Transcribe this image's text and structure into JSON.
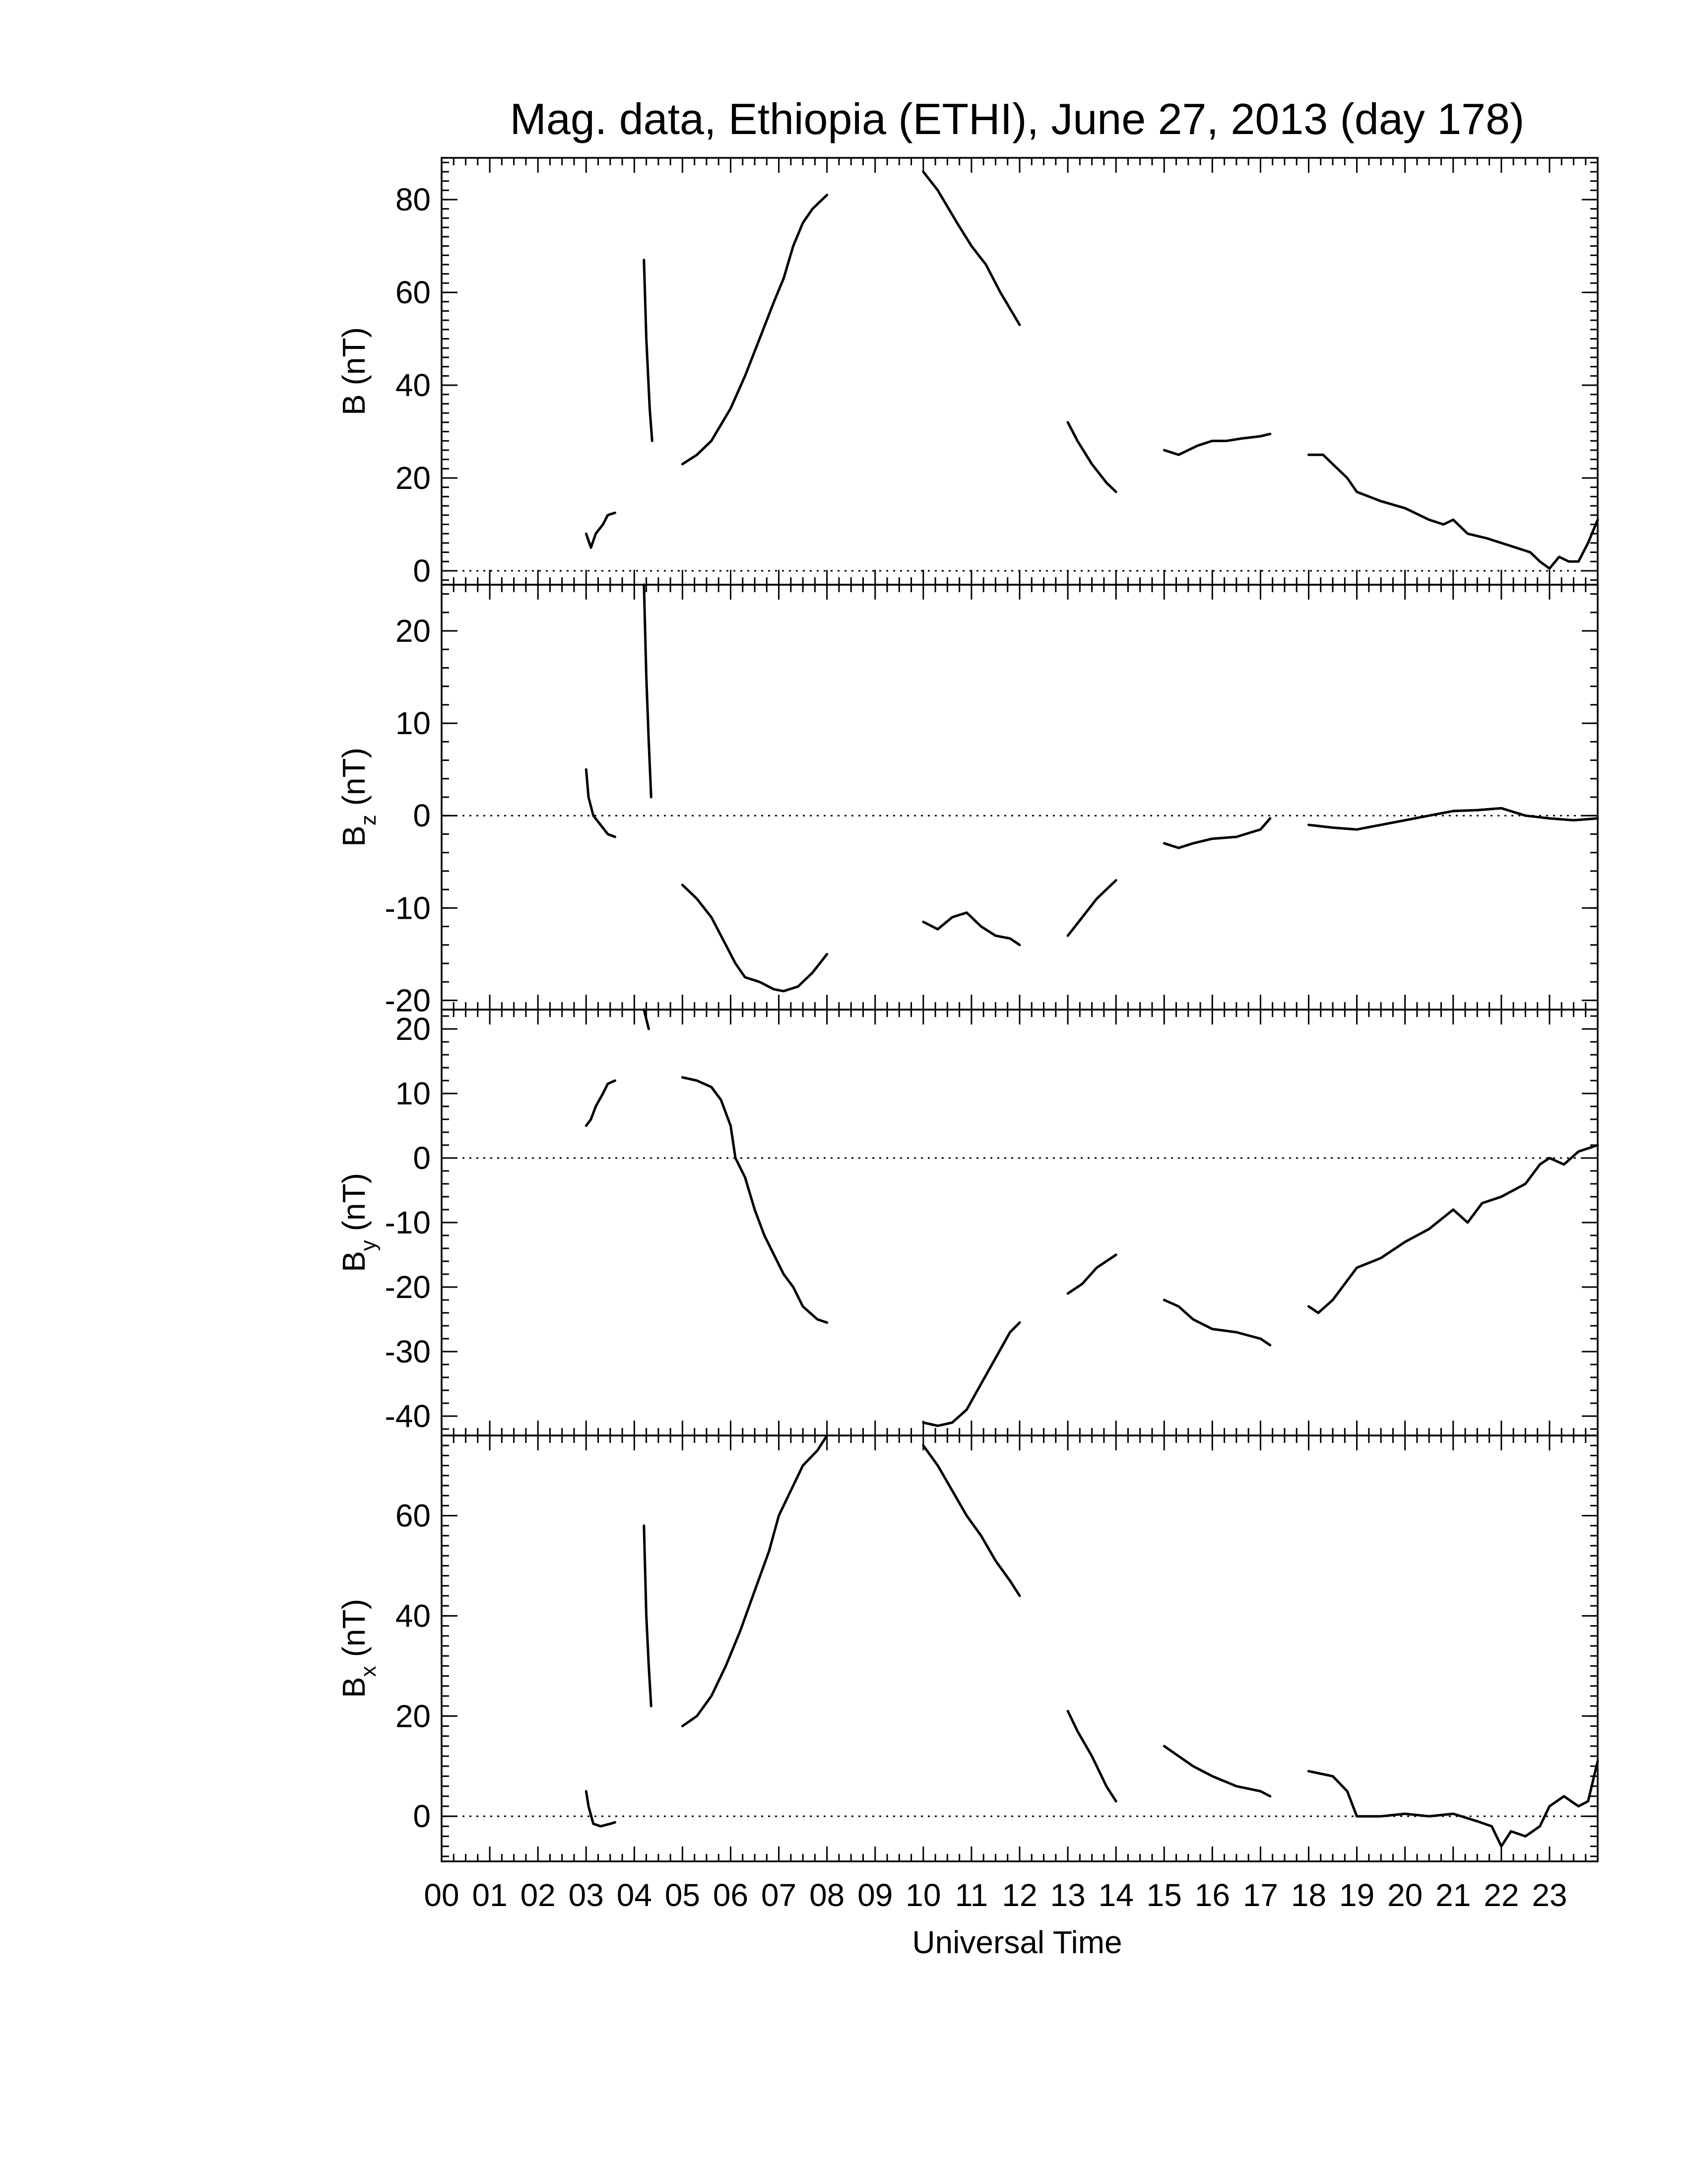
{
  "chart_data": {
    "type": "line",
    "title": "Mag. data, Ethiopia (ETHI), June 27, 2013 (day 178)",
    "xlabel": "Universal Time",
    "xlim": [
      0,
      24
    ],
    "x_tick_labels": [
      "00",
      "01",
      "02",
      "03",
      "04",
      "05",
      "06",
      "07",
      "08",
      "09",
      "10",
      "11",
      "12",
      "13",
      "14",
      "15",
      "16",
      "17",
      "18",
      "19",
      "20",
      "21",
      "22",
      "23"
    ],
    "panels": [
      {
        "id": "B",
        "ylabel_main": "B",
        "ylabel_sub": "",
        "ylabel_unit": " (nT)",
        "ylim": [
          -3,
          89
        ],
        "yticks": [
          0,
          20,
          40,
          60,
          80
        ],
        "zero_line": true,
        "segments": [
          [
            [
              3.0,
              8
            ],
            [
              3.1,
              5
            ],
            [
              3.2,
              8
            ],
            [
              3.35,
              10
            ],
            [
              3.45,
              12
            ],
            [
              3.6,
              12.5
            ]
          ],
          [
            [
              4.2,
              67
            ],
            [
              4.25,
              50
            ],
            [
              4.32,
              35
            ],
            [
              4.37,
              28
            ]
          ],
          [
            [
              5.0,
              23
            ],
            [
              5.3,
              25
            ],
            [
              5.6,
              28
            ],
            [
              6.0,
              35
            ],
            [
              6.3,
              42
            ],
            [
              6.6,
              50
            ],
            [
              6.9,
              58
            ],
            [
              7.1,
              63
            ],
            [
              7.3,
              70
            ],
            [
              7.5,
              75
            ],
            [
              7.7,
              78
            ],
            [
              8.0,
              81
            ]
          ],
          [
            [
              10.0,
              86
            ],
            [
              10.3,
              82
            ],
            [
              10.7,
              75
            ],
            [
              11.0,
              70
            ],
            [
              11.3,
              66
            ],
            [
              11.6,
              60
            ],
            [
              12.0,
              53
            ]
          ],
          [
            [
              13.0,
              32
            ],
            [
              13.2,
              28
            ],
            [
              13.5,
              23
            ],
            [
              13.8,
              19
            ],
            [
              14.0,
              17
            ]
          ],
          [
            [
              15.0,
              26
            ],
            [
              15.3,
              25
            ],
            [
              15.5,
              26
            ],
            [
              15.7,
              27
            ],
            [
              16.0,
              28
            ],
            [
              16.3,
              28
            ],
            [
              16.6,
              28.5
            ],
            [
              17.0,
              29
            ],
            [
              17.2,
              29.5
            ]
          ],
          [
            [
              18.0,
              25
            ],
            [
              18.3,
              25
            ],
            [
              18.5,
              23
            ],
            [
              18.8,
              20
            ],
            [
              19.0,
              17
            ],
            [
              19.5,
              15
            ],
            [
              20.0,
              13.5
            ],
            [
              20.5,
              11
            ],
            [
              20.8,
              10
            ],
            [
              21.0,
              11
            ],
            [
              21.3,
              8
            ],
            [
              21.7,
              7
            ],
            [
              22.0,
              6
            ],
            [
              22.3,
              5
            ],
            [
              22.6,
              4
            ],
            [
              22.8,
              2
            ],
            [
              23.0,
              0.5
            ],
            [
              23.2,
              3
            ],
            [
              23.4,
              2
            ],
            [
              23.6,
              2
            ],
            [
              23.8,
              6
            ],
            [
              24.0,
              11
            ]
          ]
        ]
      },
      {
        "id": "Bz",
        "ylabel_main": "B",
        "ylabel_sub": "z",
        "ylabel_unit": " (nT)",
        "ylim": [
          -21,
          25
        ],
        "yticks": [
          -20,
          -10,
          0,
          10,
          20
        ],
        "zero_line": true,
        "segments": [
          [
            [
              3.0,
              5
            ],
            [
              3.05,
              2
            ],
            [
              3.15,
              0
            ],
            [
              3.3,
              -1
            ],
            [
              3.45,
              -2
            ],
            [
              3.6,
              -2.3
            ]
          ],
          [
            [
              4.2,
              25
            ],
            [
              4.25,
              15
            ],
            [
              4.3,
              8
            ],
            [
              4.35,
              2
            ]
          ],
          [
            [
              5.0,
              -7.5
            ],
            [
              5.3,
              -9
            ],
            [
              5.6,
              -11
            ],
            [
              5.9,
              -14
            ],
            [
              6.1,
              -16
            ],
            [
              6.3,
              -17.5
            ],
            [
              6.6,
              -18
            ],
            [
              6.9,
              -18.8
            ],
            [
              7.1,
              -19
            ],
            [
              7.4,
              -18.5
            ],
            [
              7.7,
              -17
            ],
            [
              8.0,
              -15
            ]
          ],
          [
            [
              10.0,
              -11.5
            ],
            [
              10.3,
              -12.3
            ],
            [
              10.6,
              -11
            ],
            [
              10.9,
              -10.5
            ],
            [
              11.2,
              -12
            ],
            [
              11.5,
              -13
            ],
            [
              11.8,
              -13.3
            ],
            [
              12.0,
              -14
            ]
          ],
          [
            [
              13.0,
              -13
            ],
            [
              13.3,
              -11
            ],
            [
              13.6,
              -9
            ],
            [
              14.0,
              -7
            ]
          ],
          [
            [
              15.0,
              -3
            ],
            [
              15.3,
              -3.5
            ],
            [
              15.6,
              -3
            ],
            [
              16.0,
              -2.5
            ],
            [
              16.5,
              -2.3
            ],
            [
              17.0,
              -1.5
            ],
            [
              17.2,
              -0.3
            ]
          ],
          [
            [
              18.0,
              -1
            ],
            [
              18.5,
              -1.3
            ],
            [
              19.0,
              -1.5
            ],
            [
              19.5,
              -1
            ],
            [
              20.0,
              -0.5
            ],
            [
              20.5,
              0
            ],
            [
              21.0,
              0.5
            ],
            [
              21.5,
              0.6
            ],
            [
              22.0,
              0.8
            ],
            [
              22.5,
              0
            ],
            [
              23.0,
              -0.3
            ],
            [
              23.5,
              -0.5
            ],
            [
              24.0,
              -0.3
            ]
          ]
        ]
      },
      {
        "id": "By",
        "ylabel_main": "B",
        "ylabel_sub": "y",
        "ylabel_unit": " (nT)",
        "ylim": [
          -43,
          23
        ],
        "yticks": [
          -40,
          -30,
          -20,
          -10,
          0,
          10,
          20
        ],
        "zero_line": true,
        "segments": [
          [
            [
              3.0,
              5
            ],
            [
              3.1,
              6
            ],
            [
              3.2,
              8
            ],
            [
              3.35,
              10
            ],
            [
              3.45,
              11.5
            ],
            [
              3.6,
              12
            ]
          ],
          [
            [
              4.2,
              23
            ],
            [
              4.3,
              20
            ]
          ],
          [
            [
              5.0,
              12.5
            ],
            [
              5.3,
              12
            ],
            [
              5.6,
              11
            ],
            [
              5.8,
              9
            ],
            [
              6.0,
              5
            ],
            [
              6.1,
              0
            ],
            [
              6.3,
              -3
            ],
            [
              6.5,
              -8
            ],
            [
              6.7,
              -12
            ],
            [
              6.9,
              -15
            ],
            [
              7.1,
              -18
            ],
            [
              7.3,
              -20
            ],
            [
              7.5,
              -23
            ],
            [
              7.8,
              -25
            ],
            [
              8.0,
              -25.5
            ]
          ],
          [
            [
              10.0,
              -41
            ],
            [
              10.3,
              -41.5
            ],
            [
              10.6,
              -41
            ],
            [
              10.9,
              -39
            ],
            [
              11.2,
              -35
            ],
            [
              11.5,
              -31
            ],
            [
              11.8,
              -27
            ],
            [
              12.0,
              -25.5
            ]
          ],
          [
            [
              13.0,
              -21
            ],
            [
              13.3,
              -19.5
            ],
            [
              13.6,
              -17
            ],
            [
              14.0,
              -15
            ]
          ],
          [
            [
              15.0,
              -22
            ],
            [
              15.3,
              -23
            ],
            [
              15.6,
              -25
            ],
            [
              16.0,
              -26.5
            ],
            [
              16.5,
              -27
            ],
            [
              17.0,
              -28
            ],
            [
              17.2,
              -29
            ]
          ],
          [
            [
              18.0,
              -23
            ],
            [
              18.2,
              -24
            ],
            [
              18.5,
              -22
            ],
            [
              19.0,
              -17
            ],
            [
              19.5,
              -15.5
            ],
            [
              20.0,
              -13
            ],
            [
              20.5,
              -11
            ],
            [
              21.0,
              -8
            ],
            [
              21.3,
              -10
            ],
            [
              21.6,
              -7
            ],
            [
              22.0,
              -6
            ],
            [
              22.5,
              -4
            ],
            [
              22.8,
              -1
            ],
            [
              23.0,
              0
            ],
            [
              23.3,
              -1
            ],
            [
              23.6,
              1
            ],
            [
              24.0,
              2
            ]
          ]
        ]
      },
      {
        "id": "Bx",
        "ylabel_main": "B",
        "ylabel_sub": "x",
        "ylabel_unit": " (nT)",
        "ylim": [
          -9,
          76
        ],
        "yticks": [
          0,
          20,
          40,
          60
        ],
        "zero_line": true,
        "segments": [
          [
            [
              3.0,
              5
            ],
            [
              3.05,
              2
            ],
            [
              3.15,
              -1.5
            ],
            [
              3.3,
              -2
            ],
            [
              3.5,
              -1.5
            ],
            [
              3.6,
              -1.2
            ]
          ],
          [
            [
              4.2,
              58
            ],
            [
              4.25,
              40
            ],
            [
              4.3,
              30
            ],
            [
              4.35,
              22
            ]
          ],
          [
            [
              5.0,
              18
            ],
            [
              5.3,
              20
            ],
            [
              5.6,
              24
            ],
            [
              5.9,
              30
            ],
            [
              6.2,
              37
            ],
            [
              6.5,
              45
            ],
            [
              6.8,
              53
            ],
            [
              7.0,
              60
            ],
            [
              7.3,
              66
            ],
            [
              7.5,
              70
            ],
            [
              7.8,
              73
            ],
            [
              8.0,
              76
            ]
          ],
          [
            [
              10.0,
              74
            ],
            [
              10.3,
              70
            ],
            [
              10.6,
              65
            ],
            [
              10.9,
              60
            ],
            [
              11.2,
              56
            ],
            [
              11.5,
              51
            ],
            [
              11.8,
              47
            ],
            [
              12.0,
              44
            ]
          ],
          [
            [
              13.0,
              21
            ],
            [
              13.2,
              17
            ],
            [
              13.5,
              12
            ],
            [
              13.8,
              6
            ],
            [
              14.0,
              3
            ]
          ],
          [
            [
              15.0,
              14
            ],
            [
              15.3,
              12
            ],
            [
              15.6,
              10
            ],
            [
              16.0,
              8
            ],
            [
              16.5,
              6
            ],
            [
              17.0,
              5
            ],
            [
              17.2,
              4
            ]
          ],
          [
            [
              18.0,
              9
            ],
            [
              18.5,
              8
            ],
            [
              18.8,
              5
            ],
            [
              19.0,
              0
            ],
            [
              19.5,
              0
            ],
            [
              20.0,
              0.5
            ],
            [
              20.5,
              0
            ],
            [
              21.0,
              0.5
            ],
            [
              21.5,
              -1
            ],
            [
              21.8,
              -2
            ],
            [
              22.0,
              -6
            ],
            [
              22.2,
              -3
            ],
            [
              22.5,
              -4
            ],
            [
              22.8,
              -2
            ],
            [
              23.0,
              2
            ],
            [
              23.3,
              4
            ],
            [
              23.6,
              2
            ],
            [
              23.8,
              3
            ],
            [
              24.0,
              11
            ]
          ]
        ]
      }
    ]
  }
}
